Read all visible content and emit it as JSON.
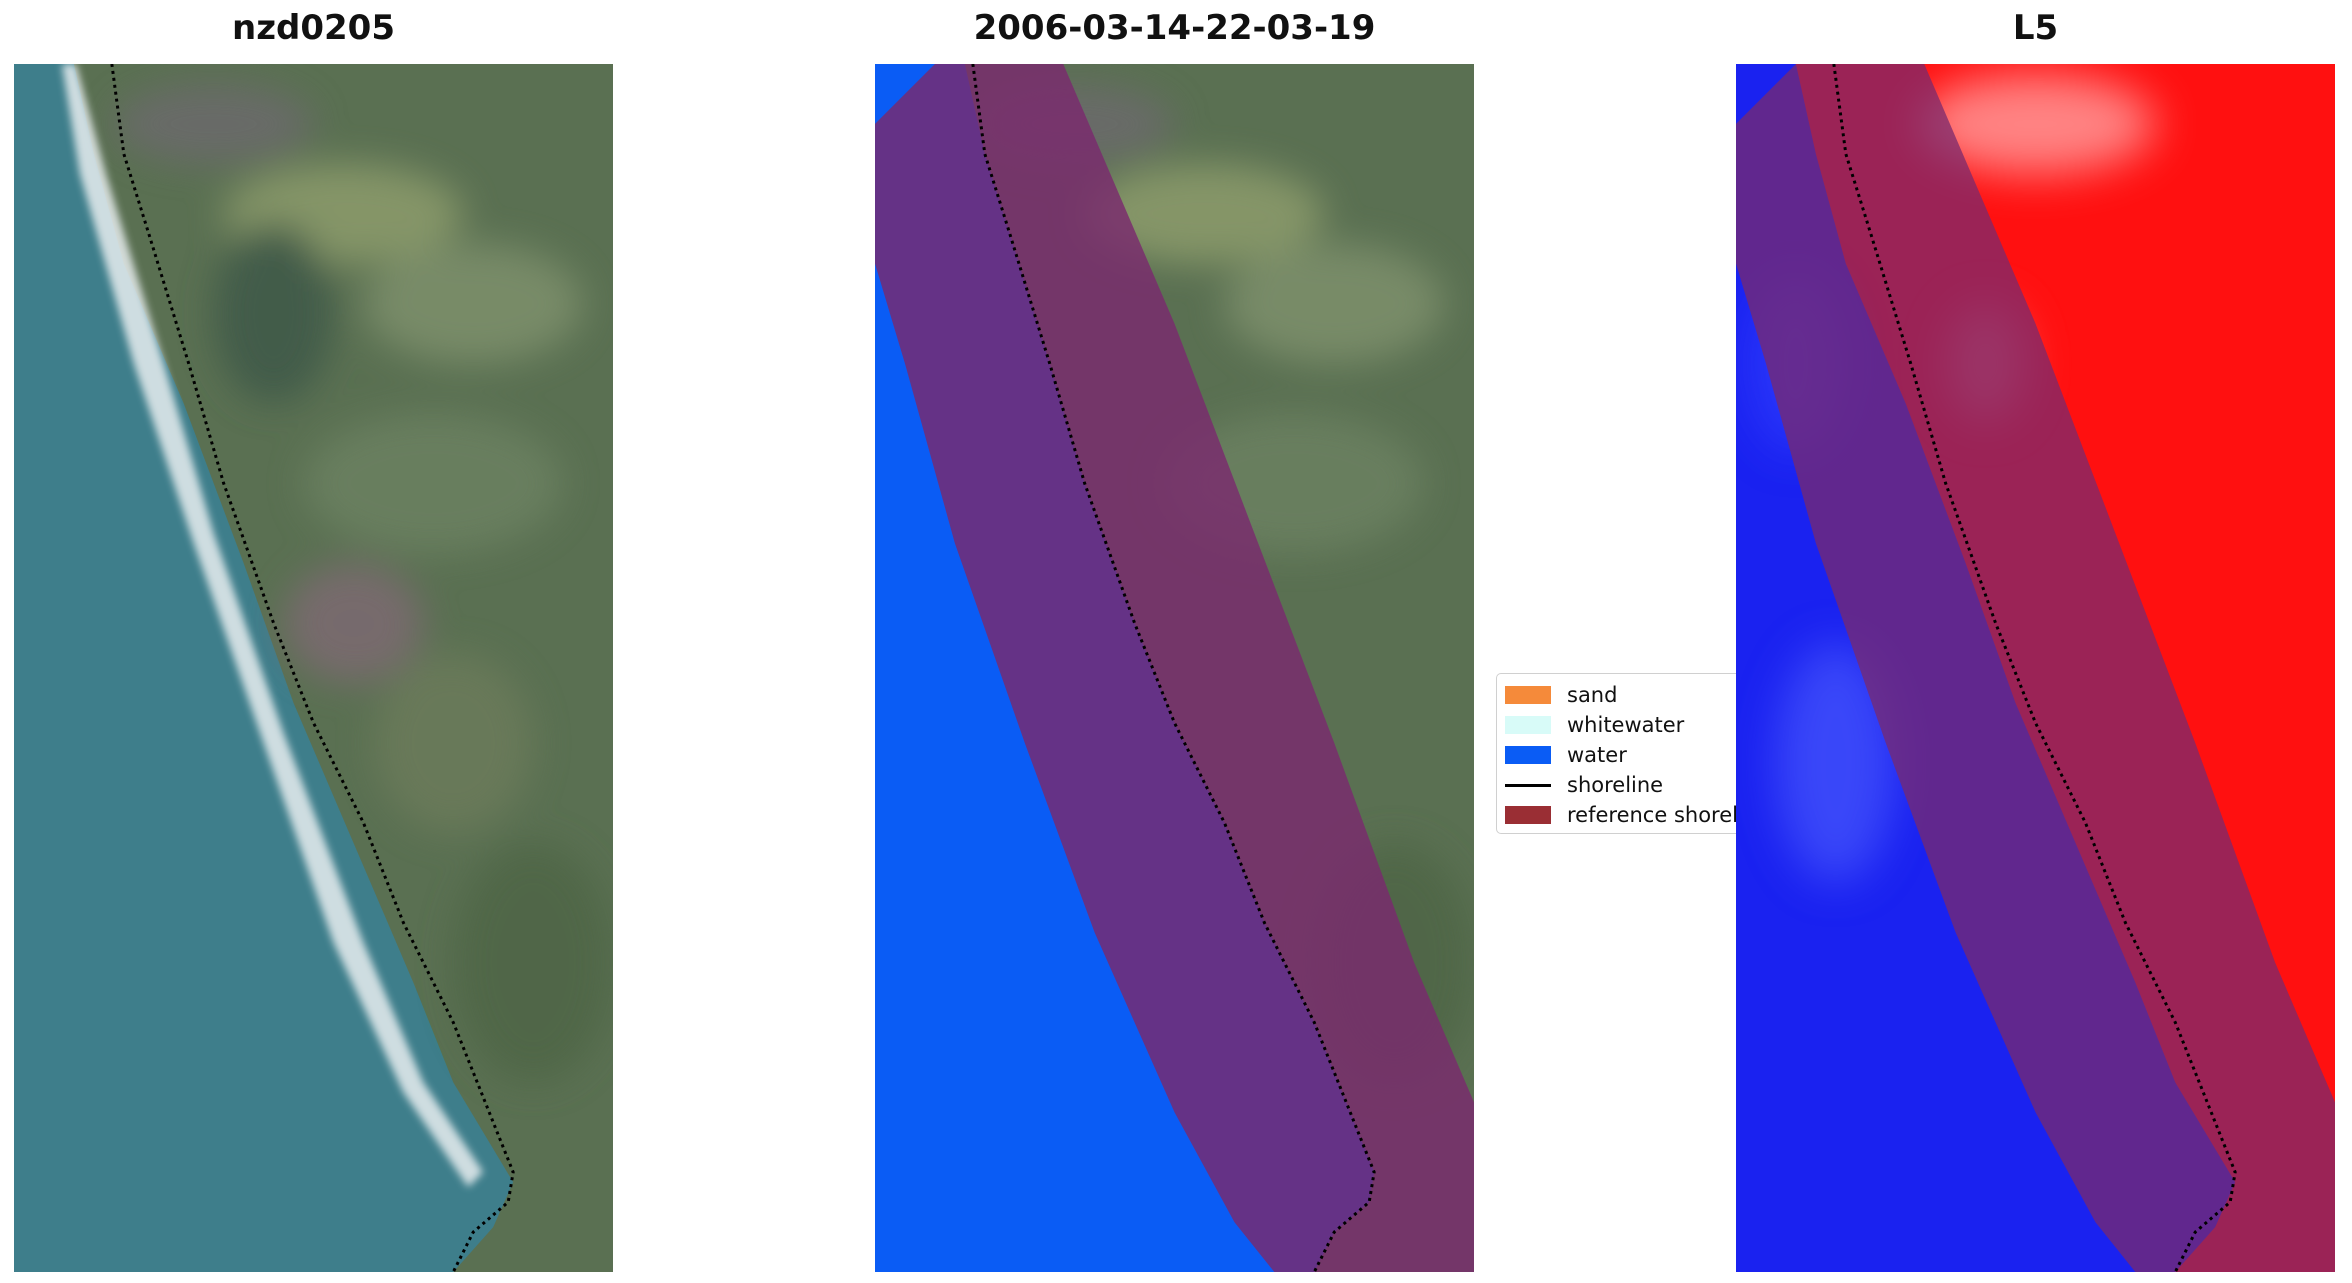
{
  "panels": [
    {
      "title": "nzd0205"
    },
    {
      "title": "2006-03-14-22-03-19"
    },
    {
      "title": "L5"
    }
  ],
  "legend": {
    "items": [
      {
        "label": "sand",
        "color": "#f58a3a",
        "kind": "patch"
      },
      {
        "label": "whitewater",
        "color": "#d8fbf8",
        "kind": "patch"
      },
      {
        "label": "water",
        "color": "#0a5cf5",
        "kind": "patch"
      },
      {
        "label": "shoreline",
        "color": "#000000",
        "kind": "line"
      },
      {
        "label": "reference shoreline",
        "color": "#9a2e34",
        "kind": "patch"
      }
    ]
  },
  "colors": {
    "ocean": "#3d7f8c",
    "land": "#5d7556",
    "classified_water": "#0a5cf5",
    "buffer_overlay": "#7a2a6e",
    "index_water": "#1a22f0",
    "index_land": "#ff1010"
  }
}
